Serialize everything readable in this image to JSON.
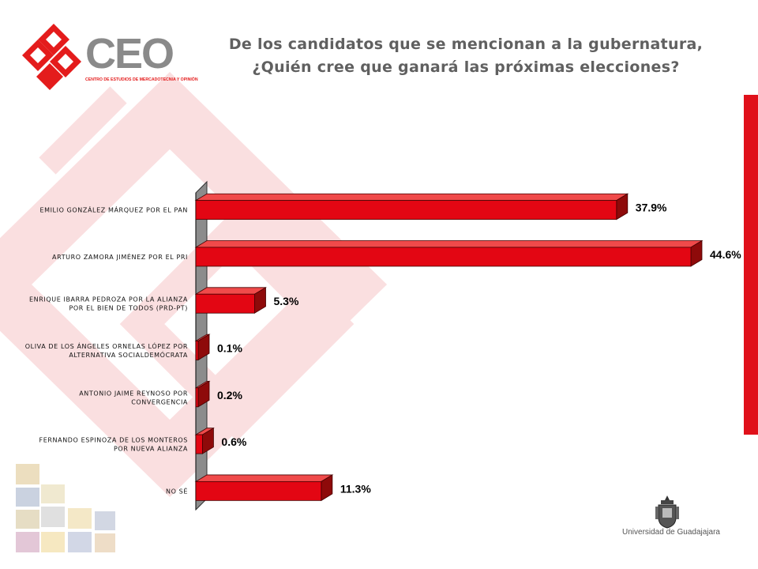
{
  "slide": {
    "title": "De los candidatos que se mencionan a la gubernatura, ¿Quién cree que ganará las próximas elecciones?",
    "logo_text": "CEO",
    "logo_subtitle": "CENTRO DE ESTUDIOS DE MERCADOTECNIA Y OPINIÓN",
    "university": "Universidad de Guadajajara"
  },
  "colors": {
    "bar_front": "#e30613",
    "bar_top": "#f04a4a",
    "bar_side": "#8e0a0a",
    "accent": "#e0101a",
    "logo_red": "#e41c1c",
    "logo_gray": "#8a8a8a"
  },
  "chart_data": {
    "type": "bar",
    "orientation": "horizontal",
    "categories": [
      "EMILIO GONZÁLEZ MÁRQUEZ POR EL PAN",
      "ARTURO ZAMORA JIMÉNEZ POR EL PRI",
      "ENRIQUE IBARRA PEDROZA POR LA ALIANZA POR EL BIEN DE TODOS (PRD-PT)",
      "OLIVA DE LOS ÁNGELES ORNELAS LÓPEZ POR ALTERNATIVA SOCIALDEMÓCRATA",
      "ANTONIO JAIME REYNOSO POR CONVERGENCIA",
      "FERNANDO ESPINOZA DE LOS MONTEROS POR NUEVA ALIANZA",
      "NO SÉ"
    ],
    "category_lines": [
      [
        "EMILIO GONZÁLEZ MÁRQUEZ POR EL PAN"
      ],
      [
        "ARTURO ZAMORA JIMÉNEZ POR EL PRI"
      ],
      [
        "ENRIQUE IBARRA PEDROZA POR LA ALIANZA",
        "POR EL BIEN DE TODOS (PRD-PT)"
      ],
      [
        "OLIVA DE LOS ÁNGELES ORNELAS LÓPEZ POR",
        "ALTERNATIVA SOCIALDEMÓCRATA"
      ],
      [
        "ANTONIO JAIME REYNOSO POR",
        "CONVERGENCIA"
      ],
      [
        "FERNANDO ESPINOZA DE LOS MONTEROS",
        "POR NUEVA ALIANZA"
      ],
      [
        "NO SÉ"
      ]
    ],
    "values": [
      37.9,
      44.6,
      5.3,
      0.1,
      0.2,
      0.6,
      11.3
    ],
    "labels": [
      "37.9%",
      "44.6%",
      "5.3%",
      "0.1%",
      "0.2%",
      "0.6%",
      "11.3%"
    ],
    "xlim": [
      0,
      44.6
    ],
    "grid": false,
    "legend": false,
    "style": "3d"
  }
}
